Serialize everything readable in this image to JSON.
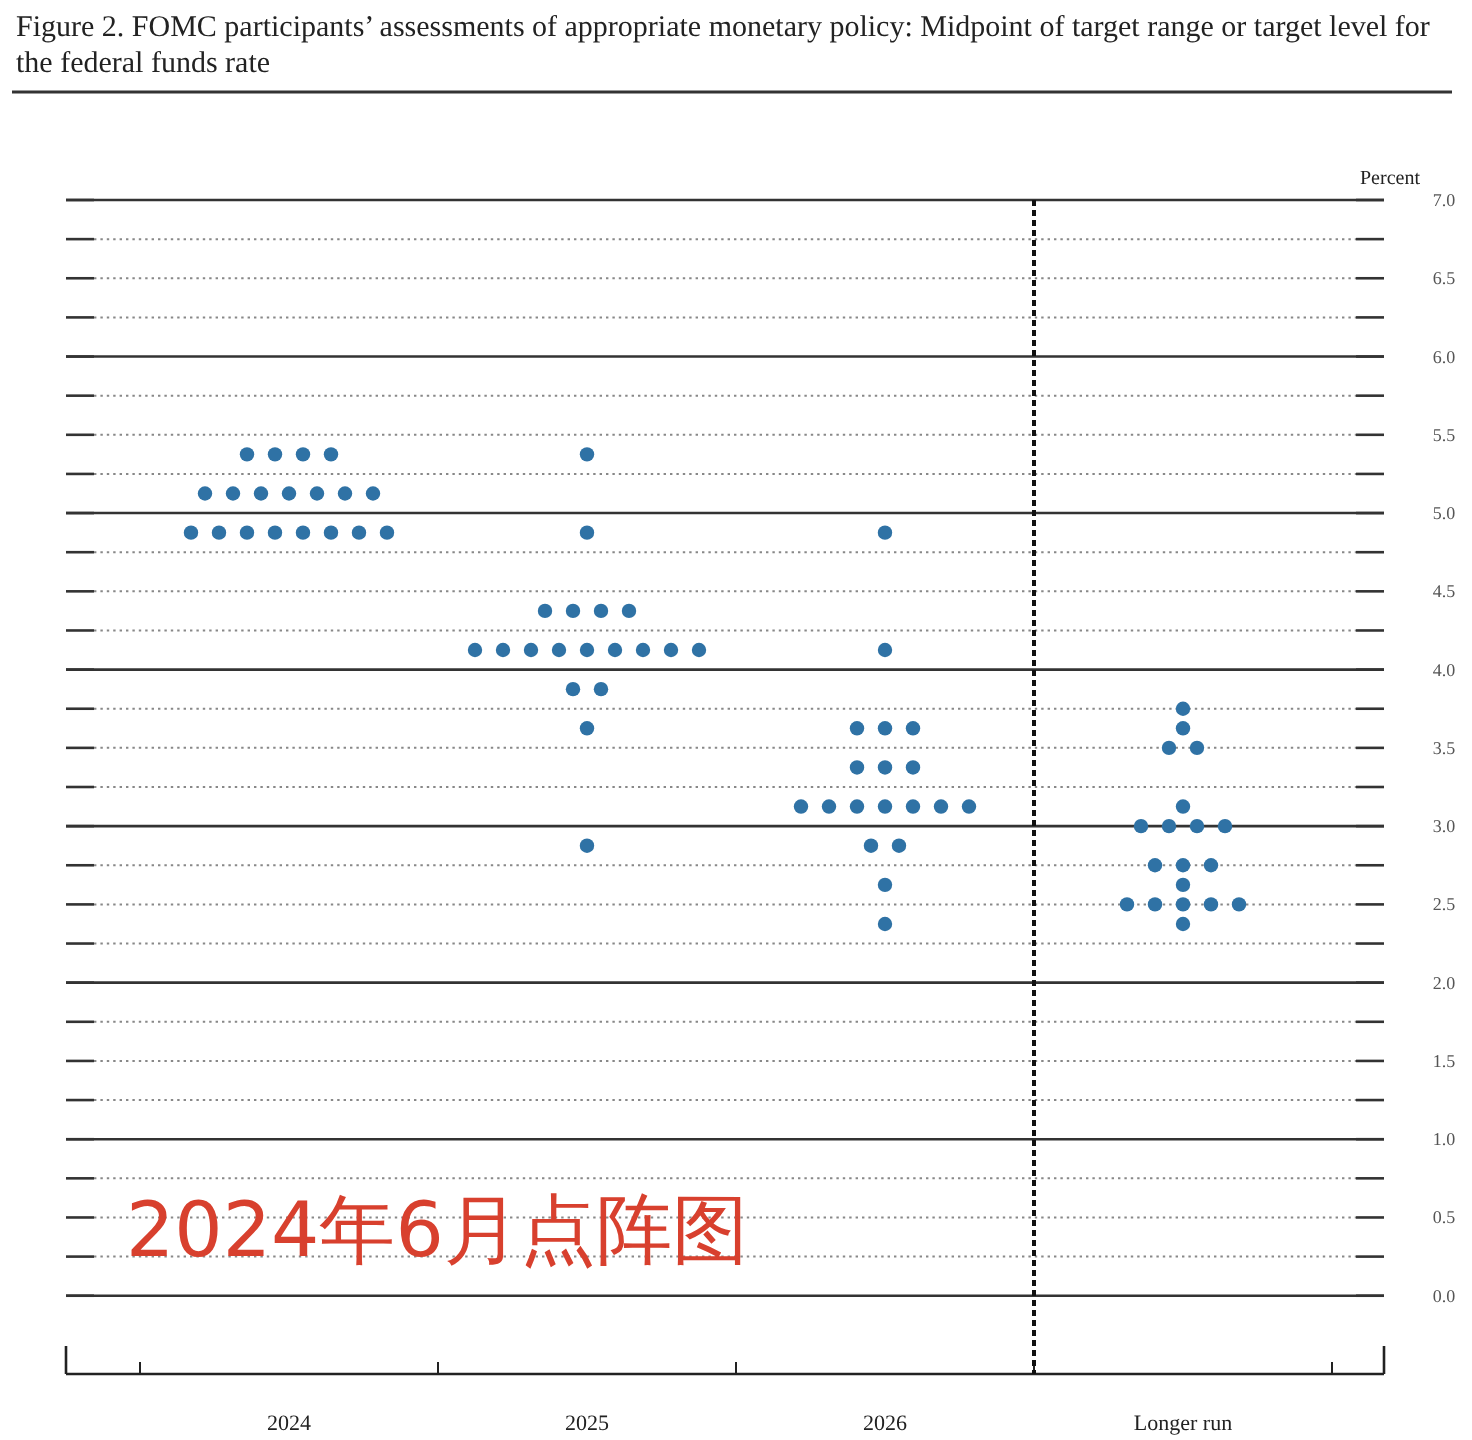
{
  "chart_data": {
    "type": "scatter",
    "title": "Figure 2.  FOMC participants’ assessments of appropriate monetary policy: Midpoint of target range or target level for the federal funds rate",
    "ylabel": "Percent",
    "categories": [
      "2024",
      "2025",
      "2026",
      "Longer run"
    ],
    "series": [
      {
        "color": "#2f72a5",
        "values": [
          5.375,
          5.375,
          4.875,
          3.75
        ]
      },
      {
        "color": "#2f72a5",
        "values": [
          5.375,
          4.875,
          4.125,
          3.625
        ]
      },
      {
        "color": "#2f72a5",
        "values": [
          5.375,
          4.375,
          3.625,
          3.5
        ]
      },
      {
        "color": "#2f72a5",
        "values": [
          5.375,
          4.375,
          3.625,
          3.5
        ]
      },
      {
        "color": "#2f72a5",
        "values": [
          5.125,
          4.375,
          3.625,
          3.125
        ]
      },
      {
        "color": "#2f72a5",
        "values": [
          5.125,
          4.375,
          3.375,
          3.0
        ]
      },
      {
        "color": "#2f72a5",
        "values": [
          5.125,
          4.125,
          3.375,
          3.0
        ]
      },
      {
        "color": "#2f72a5",
        "values": [
          5.125,
          4.125,
          3.375,
          3.0
        ]
      },
      {
        "color": "#2f72a5",
        "values": [
          5.125,
          4.125,
          3.125,
          3.0
        ]
      },
      {
        "color": "#2f72a5",
        "values": [
          5.125,
          4.125,
          3.125,
          2.75
        ]
      },
      {
        "color": "#2f72a5",
        "values": [
          5.125,
          4.125,
          3.125,
          2.75
        ]
      },
      {
        "color": "#2f72a5",
        "values": [
          4.875,
          4.125,
          3.125,
          2.75
        ]
      },
      {
        "color": "#2f72a5",
        "values": [
          4.875,
          4.125,
          3.125,
          2.625
        ]
      },
      {
        "color": "#2f72a5",
        "values": [
          4.875,
          4.125,
          3.125,
          2.5
        ]
      },
      {
        "color": "#2f72a5",
        "values": [
          4.875,
          4.125,
          3.125,
          2.5
        ]
      },
      {
        "color": "#2f72a5",
        "values": [
          4.875,
          3.875,
          2.875,
          2.5
        ]
      },
      {
        "color": "#2f72a5",
        "values": [
          4.875,
          3.875,
          2.875,
          2.5
        ]
      },
      {
        "color": "#2f72a5",
        "values": [
          4.875,
          3.625,
          2.625,
          2.5
        ]
      },
      {
        "color": "#2f72a5",
        "values": [
          4.875,
          2.875,
          2.375,
          2.375
        ]
      }
    ],
    "ylim": [
      -0.5,
      7
    ],
    "yticks": [
      {
        "value": 0,
        "label": "0.0"
      },
      {
        "value": 0.25,
        "label": null
      },
      {
        "value": 0.5,
        "label": "0.5"
      },
      {
        "value": 0.75,
        "label": null
      },
      {
        "value": 1,
        "label": "1.0"
      },
      {
        "value": 1.25,
        "label": null
      },
      {
        "value": 1.5,
        "label": "1.5"
      },
      {
        "value": 1.75,
        "label": null
      },
      {
        "value": 2,
        "label": "2.0"
      },
      {
        "value": 2.25,
        "label": null
      },
      {
        "value": 2.5,
        "label": "2.5"
      },
      {
        "value": 2.75,
        "label": null
      },
      {
        "value": 3,
        "label": "3.0"
      },
      {
        "value": 3.25,
        "label": null
      },
      {
        "value": 3.5,
        "label": "3.5"
      },
      {
        "value": 3.75,
        "label": null
      },
      {
        "value": 4,
        "label": "4.0"
      },
      {
        "value": 4.25,
        "label": null
      },
      {
        "value": 4.5,
        "label": "4.5"
      },
      {
        "value": 4.75,
        "label": null
      },
      {
        "value": 5,
        "label": "5.0"
      },
      {
        "value": 5.25,
        "label": null
      },
      {
        "value": 5.5,
        "label": "5.5"
      },
      {
        "value": 5.75,
        "label": null
      },
      {
        "value": 6,
        "label": "6.0"
      },
      {
        "value": 6.25,
        "label": null
      },
      {
        "value": 6.5,
        "label": "6.5"
      },
      {
        "value": 6.75,
        "label": null
      },
      {
        "value": 7,
        "label": "7.0"
      }
    ],
    "ref_lines": [
      {
        "axis": "x",
        "value": "Longer run",
        "color": "#111111",
        "line_style": "dashed"
      }
    ],
    "grid": "y",
    "marker": "circle",
    "annotations": [
      "2024年6月点阵图"
    ]
  }
}
